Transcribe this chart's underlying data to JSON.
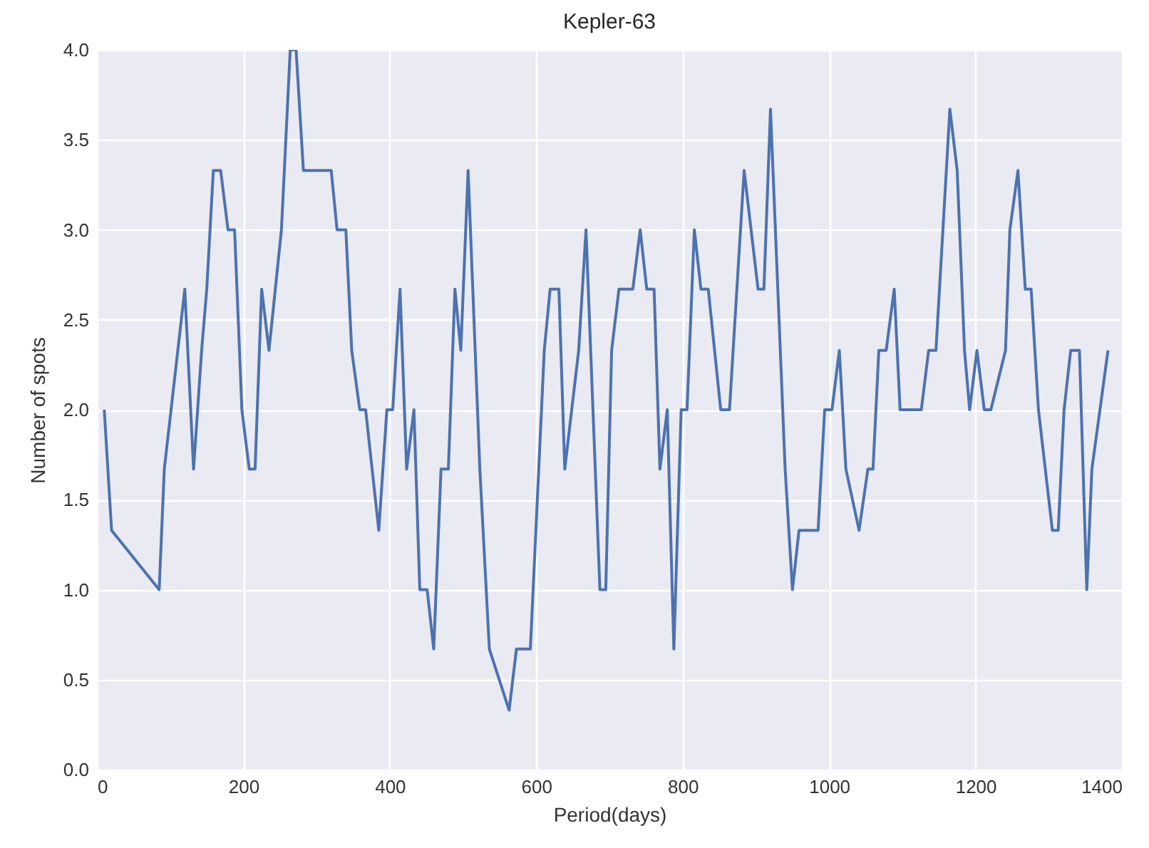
{
  "chart_data": {
    "type": "line",
    "title": "Kepler-63",
    "xlabel": "Period(days)",
    "ylabel": "Number of spots",
    "x": [
      10,
      20,
      85,
      92,
      120,
      132,
      143,
      150,
      159,
      169,
      179,
      188,
      198,
      208,
      216,
      225,
      235,
      252,
      264,
      272,
      282,
      320,
      328,
      340,
      348,
      359,
      367,
      385,
      396,
      404,
      414,
      423,
      433,
      441,
      451,
      460,
      470,
      480,
      489,
      497,
      507,
      523,
      536,
      563,
      573,
      592,
      611,
      619,
      631,
      639,
      658,
      668,
      687,
      695,
      703,
      713,
      732,
      742,
      751,
      761,
      769,
      779,
      788,
      798,
      806,
      816,
      825,
      835,
      852,
      864,
      884,
      903,
      911,
      920,
      940,
      950,
      959,
      985,
      994,
      1004,
      1014,
      1023,
      1041,
      1053,
      1060,
      1068,
      1078,
      1089,
      1097,
      1126,
      1136,
      1146,
      1165,
      1175,
      1185,
      1192,
      1202,
      1212,
      1221,
      1241,
      1247,
      1258,
      1268,
      1276,
      1286,
      1305,
      1313,
      1321,
      1330,
      1342,
      1352,
      1359,
      1381
    ],
    "series": [
      {
        "color": "#4c72b0",
        "values": [
          2.0,
          1.33,
          1.0,
          1.67,
          2.67,
          1.67,
          2.33,
          2.67,
          3.33,
          3.33,
          3.0,
          3.0,
          2.0,
          1.67,
          1.67,
          2.67,
          2.33,
          3.0,
          4.0,
          4.0,
          3.33,
          3.33,
          3.0,
          3.0,
          2.33,
          2.0,
          2.0,
          1.33,
          2.0,
          2.0,
          2.67,
          1.67,
          2.0,
          1.0,
          1.0,
          0.67,
          1.67,
          1.67,
          2.67,
          2.33,
          3.33,
          1.67,
          0.67,
          0.33,
          0.67,
          0.67,
          2.33,
          2.67,
          2.67,
          1.67,
          2.33,
          3.0,
          1.0,
          1.0,
          2.33,
          2.67,
          2.67,
          3.0,
          2.67,
          2.67,
          1.67,
          2.0,
          0.67,
          2.0,
          2.0,
          3.0,
          2.67,
          2.67,
          2.0,
          2.0,
          3.33,
          2.67,
          2.67,
          3.67,
          1.67,
          1.0,
          1.33,
          1.33,
          2.0,
          2.0,
          2.33,
          1.67,
          1.33,
          1.67,
          1.67,
          2.33,
          2.33,
          2.67,
          2.0,
          2.0,
          2.33,
          2.33,
          3.67,
          3.33,
          2.33,
          2.0,
          2.33,
          2.0,
          2.0,
          2.33,
          3.0,
          3.33,
          2.67,
          2.67,
          2.0,
          1.33,
          1.33,
          2.0,
          2.33,
          2.33,
          1.0,
          1.67,
          2.33
        ]
      }
    ],
    "xlim": [
      0,
      1400
    ],
    "xticks": [
      0,
      200,
      400,
      600,
      800,
      1000,
      1200,
      1400
    ],
    "ylim": [
      0,
      4
    ],
    "yticks": [
      {
        "value": 0,
        "label": "0.0"
      },
      {
        "value": 0.5,
        "label": "0.5"
      },
      {
        "value": 1,
        "label": "1.0"
      },
      {
        "value": 1.5,
        "label": "1.5"
      },
      {
        "value": 2,
        "label": "2.0"
      },
      {
        "value": 2.5,
        "label": "2.5"
      },
      {
        "value": 3,
        "label": "3.0"
      },
      {
        "value": 3.5,
        "label": "3.5"
      },
      {
        "value": 4,
        "label": "4.0"
      }
    ],
    "grid": true
  }
}
